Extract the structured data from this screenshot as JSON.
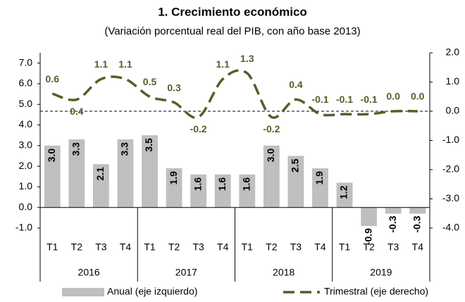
{
  "chart_data": {
    "type": "bar_line",
    "title": "1. Crecimiento económico",
    "subtitle": "(Variación porcentual real del PIB, con año base 2013)",
    "categories": [
      "T1",
      "T2",
      "T3",
      "T4",
      "T1",
      "T2",
      "T3",
      "T4",
      "T1",
      "T2",
      "T3",
      "T4",
      "T1",
      "T2",
      "T3",
      "T4"
    ],
    "years": [
      "2016",
      "2017",
      "2018",
      "2019"
    ],
    "series": [
      {
        "name": "Anual (eje izquierdo)",
        "type": "bar",
        "color": "#bfbfbf",
        "values": [
          3.0,
          3.3,
          2.1,
          3.3,
          3.5,
          1.9,
          1.6,
          1.6,
          1.6,
          3.0,
          2.5,
          1.9,
          1.2,
          -0.9,
          -0.3,
          -0.3
        ],
        "value_labels": [
          "3.0",
          "3.3",
          "2.1",
          "3.3",
          "3.5",
          "1.9",
          "1.6",
          "1.6",
          "1.6",
          "3.0",
          "2.5",
          "1.9",
          "1.2",
          "-0.9",
          "-0.3",
          "-0.3"
        ]
      },
      {
        "name": "Trimestral (eje derecho)",
        "type": "line",
        "axis": "y2",
        "color": "#4f6228",
        "values": [
          0.6,
          0.4,
          1.1,
          1.1,
          0.5,
          0.3,
          -0.2,
          1.1,
          1.3,
          -0.2,
          0.4,
          -0.1,
          -0.1,
          -0.1,
          0.0,
          0.0
        ],
        "value_labels": [
          "0.6",
          "0.4",
          "1.1",
          "1.1",
          "0.5",
          "0.3",
          "-0.2",
          "1.1",
          "1.3",
          "-0.2",
          "0.4",
          "-0.1",
          "-0.1",
          "-0.1",
          "0.0",
          "0.0"
        ]
      }
    ],
    "ylim": [
      -1,
      7.5
    ],
    "yticks": [
      {
        "value": -1,
        "label": "-1.0"
      },
      {
        "value": 0,
        "label": "0.0"
      },
      {
        "value": 1,
        "label": "1.0"
      },
      {
        "value": 2,
        "label": "2.0"
      },
      {
        "value": 3,
        "label": "3.0"
      },
      {
        "value": 4,
        "label": "4.0"
      },
      {
        "value": 5,
        "label": "5.0"
      },
      {
        "value": 6,
        "label": "6.0"
      },
      {
        "value": 7,
        "label": "7.0"
      }
    ],
    "y2lim": [
      -4,
      2
    ],
    "y2ticks": [
      {
        "value": -4,
        "label": "-4.0"
      },
      {
        "value": -3,
        "label": "-3.0"
      },
      {
        "value": -2,
        "label": "-2.0"
      },
      {
        "value": -1,
        "label": "-1.0"
      },
      {
        "value": 0,
        "label": "0.0"
      },
      {
        "value": 1,
        "label": "1.0"
      },
      {
        "value": 2,
        "label": "2.0"
      }
    ],
    "legend": "bottom"
  }
}
